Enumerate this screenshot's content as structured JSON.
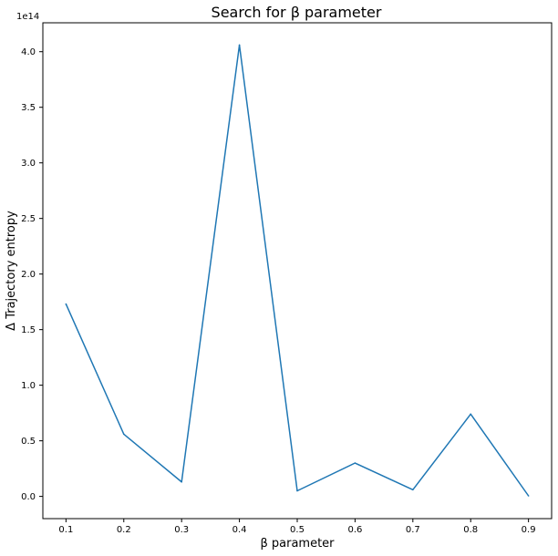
{
  "chart_data": {
    "type": "line",
    "title": "Search for β parameter",
    "xlabel": "β parameter",
    "ylabel": "Δ Trajectory entropy",
    "y_offset_label": "1e14",
    "x": [
      0.1,
      0.2,
      0.3,
      0.4,
      0.5,
      0.6,
      0.7,
      0.8,
      0.9
    ],
    "series": [
      {
        "values": [
          1.73,
          0.56,
          0.13,
          4.06,
          0.05,
          0.3,
          0.06,
          0.74,
          0.005
        ]
      }
    ],
    "x_ticks": [
      "0.1",
      "0.2",
      "0.3",
      "0.4",
      "0.5",
      "0.6",
      "0.7",
      "0.8",
      "0.9"
    ],
    "y_ticks": [
      "0.0",
      "0.5",
      "1.0",
      "1.5",
      "2.0",
      "2.5",
      "3.0",
      "3.5",
      "4.0"
    ],
    "xlim": [
      0.06,
      0.94
    ],
    "ylim": [
      -0.2,
      4.26
    ],
    "grid": false,
    "line_color": "#1f77b4"
  }
}
